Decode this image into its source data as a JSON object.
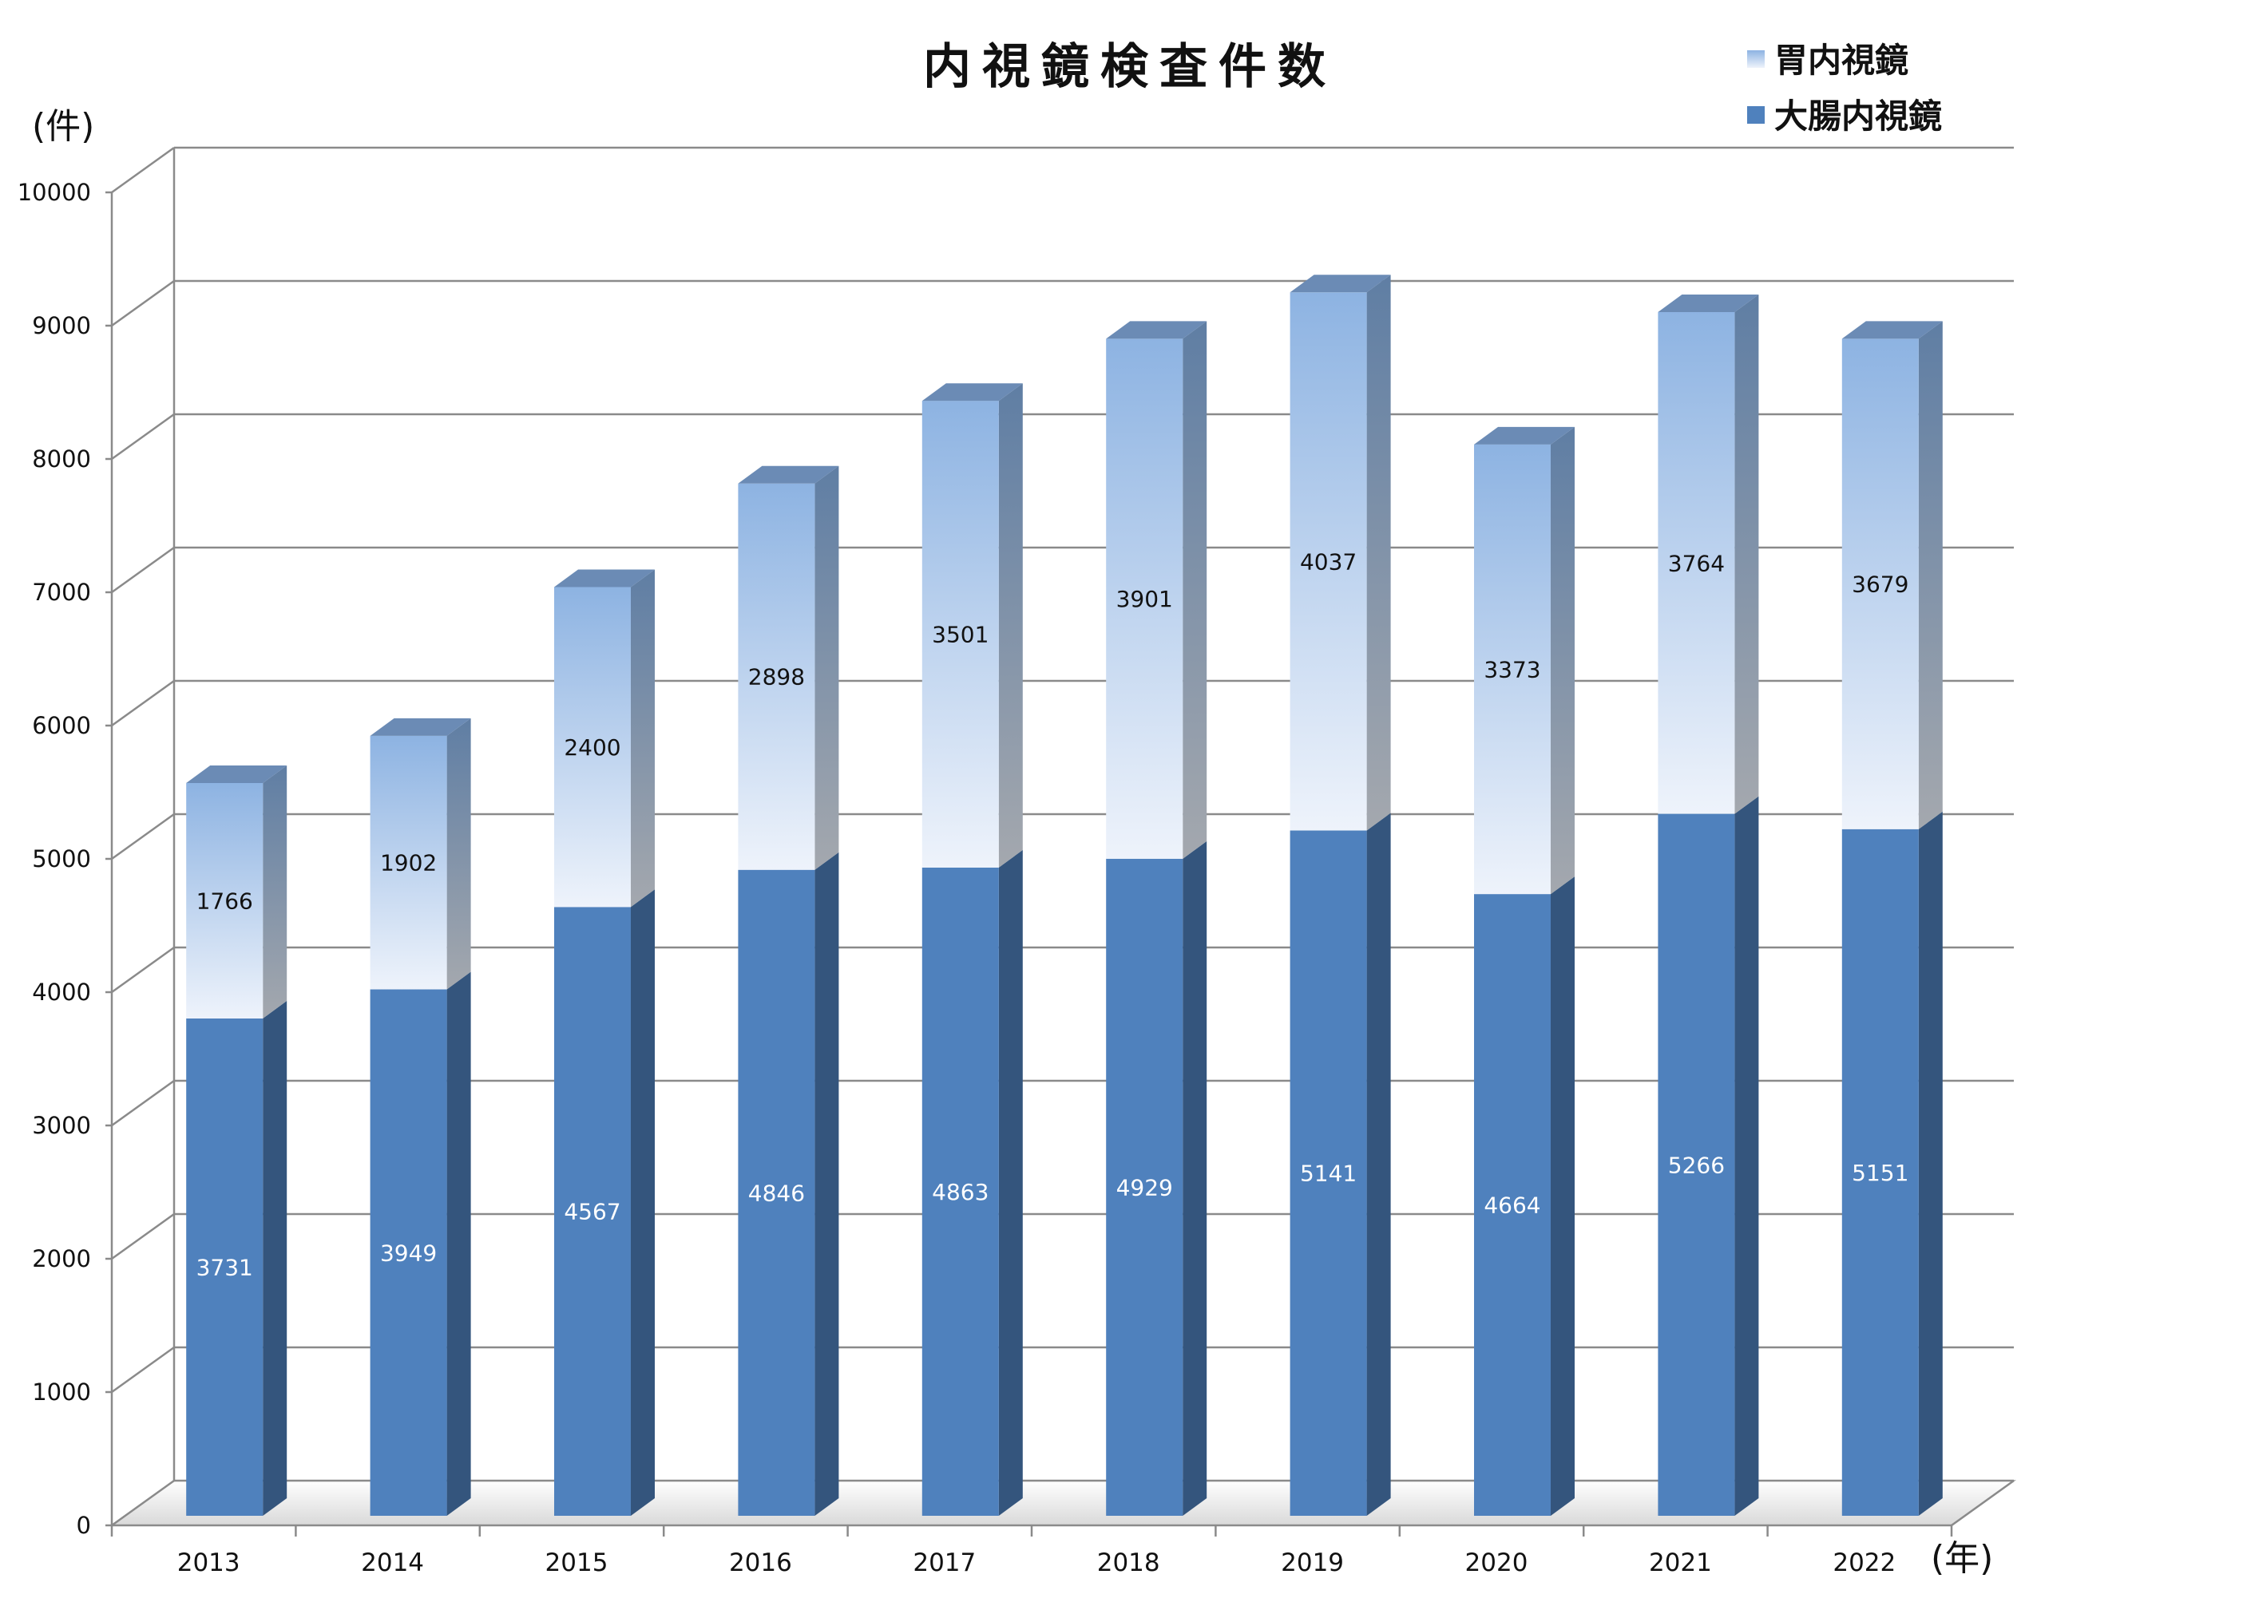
{
  "chart_data": {
    "type": "bar",
    "stacked": true,
    "three_d": true,
    "title": "内視鏡検査件数",
    "ylabel": "(件)",
    "xlabel": "(年)",
    "ylim": [
      0,
      10000
    ],
    "yticks": [
      0,
      1000,
      2000,
      3000,
      4000,
      5000,
      6000,
      7000,
      8000,
      9000,
      10000
    ],
    "categories": [
      "2013",
      "2014",
      "2015",
      "2016",
      "2017",
      "2018",
      "2019",
      "2020",
      "2021",
      "2022"
    ],
    "series": [
      {
        "name": "大腸内視鏡",
        "values": [
          3731,
          3949,
          4567,
          4846,
          4863,
          4929,
          5141,
          4664,
          5266,
          5151
        ],
        "color": "#4f81bd"
      },
      {
        "name": "胃内視鏡",
        "values": [
          1766,
          1902,
          2400,
          2898,
          3501,
          3901,
          4037,
          3373,
          3764,
          3679
        ],
        "color": "#8db3e2"
      }
    ],
    "legend": [
      "胃内視鏡",
      "大腸内視鏡"
    ],
    "legend_position": "top-right",
    "grid": true
  }
}
